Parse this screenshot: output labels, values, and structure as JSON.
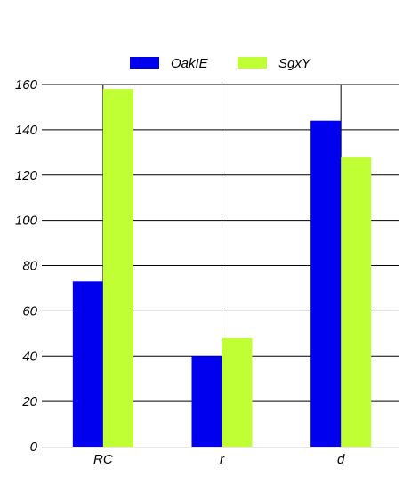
{
  "chart_data": {
    "type": "bar",
    "title": "",
    "xlabel": "",
    "ylabel": "",
    "categories": [
      "RC",
      "r",
      "d"
    ],
    "series": [
      {
        "name": "OakIE",
        "values": [
          73,
          40,
          144
        ],
        "color": "#0000ee"
      },
      {
        "name": "SgxY",
        "values": [
          158,
          48,
          128
        ],
        "color": "#c0ff33"
      }
    ],
    "ylim": [
      0,
      160
    ],
    "yticks": [
      "0",
      "20",
      "40",
      "60",
      "80",
      "100",
      "120",
      "140",
      "160"
    ],
    "grid": true,
    "legend_position": "top-center"
  }
}
